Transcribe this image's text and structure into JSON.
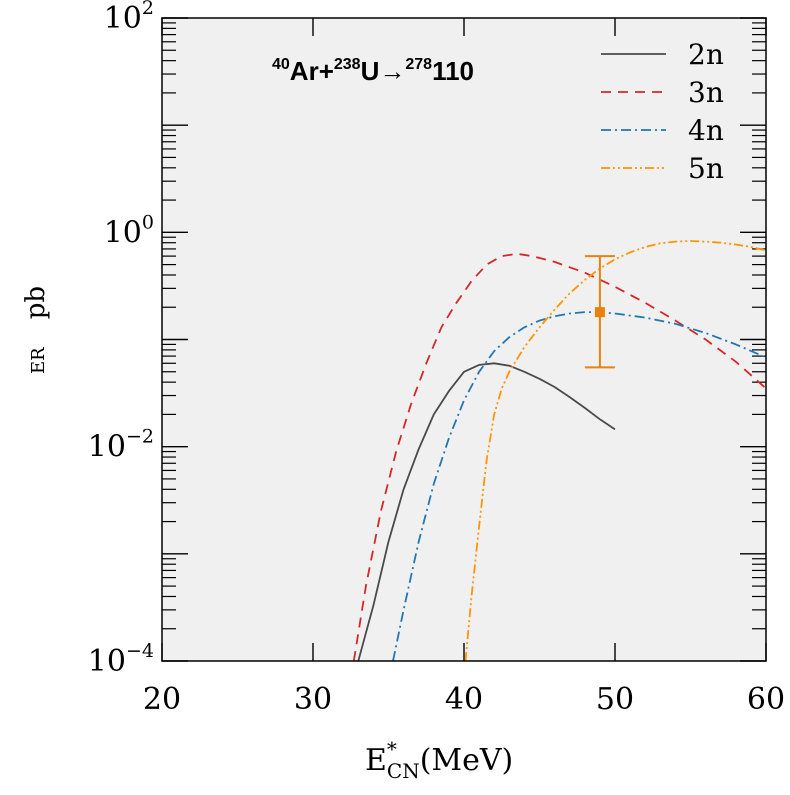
{
  "colors": {
    "background": "#ffffff",
    "plot_area": "#f0f0f0",
    "axis": "#000000",
    "2n": "#4a4a4a",
    "3n": "#d62728",
    "4n": "#1f77b4",
    "5n": "#ff9500",
    "experiment": "#e8820c"
  },
  "chart_data": {
    "type": "line",
    "title": {
      "a1": "40",
      "e1": "Ar+",
      "a2": "238",
      "e2": "U",
      "arrow": "→",
      "a3": "278",
      "e3": "110"
    },
    "xlabel": {
      "main": "E",
      "sup": "*",
      "sub": "CN",
      "unit": "(MeV)"
    },
    "ylabel": {
      "sub": "ER",
      "main": "pb"
    },
    "xlim": [
      20,
      60
    ],
    "ylim": [
      0.0001,
      100
    ],
    "yscale": "log",
    "x_ticks": [
      {
        "value": 20,
        "label": "20"
      },
      {
        "value": 30,
        "label": "30"
      },
      {
        "value": 40,
        "label": "40"
      },
      {
        "value": 50,
        "label": "50"
      },
      {
        "value": 60,
        "label": "60"
      }
    ],
    "y_ticks": [
      {
        "value": 0.0001,
        "base": "10",
        "exp": "−4"
      },
      {
        "value": 0.01,
        "base": "10",
        "exp": "−2"
      },
      {
        "value": 1,
        "base": "10",
        "exp": "0"
      },
      {
        "value": 100,
        "base": "10",
        "exp": "2"
      }
    ],
    "legend_position": "top-right",
    "series": [
      {
        "name": "2n",
        "color_key": "2n",
        "dash": "solid",
        "x": [
          33,
          34,
          35,
          36,
          37,
          38,
          39,
          40,
          41,
          42,
          43,
          44,
          45,
          46,
          47,
          48,
          49,
          50
        ],
        "y": [
          0.0001,
          0.00033,
          0.0013,
          0.004,
          0.0095,
          0.02,
          0.033,
          0.05,
          0.058,
          0.06,
          0.057,
          0.05,
          0.043,
          0.036,
          0.029,
          0.023,
          0.018,
          0.0145
        ]
      },
      {
        "name": "3n",
        "color_key": "3n",
        "dash": "dashed",
        "x": [
          32.7,
          33.5,
          34.5,
          35.5,
          36.5,
          37.5,
          38.5,
          39.5,
          40.5,
          41.5,
          42.5,
          43.5,
          44.5,
          46,
          48,
          50,
          52,
          54,
          56,
          58,
          60
        ],
        "y": [
          0.0001,
          0.0005,
          0.0025,
          0.009,
          0.025,
          0.06,
          0.13,
          0.22,
          0.35,
          0.5,
          0.6,
          0.63,
          0.6,
          0.53,
          0.42,
          0.31,
          0.22,
          0.15,
          0.1,
          0.062,
          0.035
        ]
      },
      {
        "name": "4n",
        "color_key": "4n",
        "dash": "dashdot",
        "x": [
          35.3,
          36,
          37,
          38,
          39,
          40,
          41,
          42,
          43,
          44,
          45,
          46,
          47,
          48,
          49,
          50,
          52,
          54,
          56,
          58,
          60
        ],
        "y": [
          0.0001,
          0.0003,
          0.0013,
          0.0045,
          0.012,
          0.027,
          0.05,
          0.078,
          0.105,
          0.13,
          0.15,
          0.165,
          0.175,
          0.18,
          0.18,
          0.175,
          0.16,
          0.14,
          0.115,
          0.09,
          0.068
        ]
      },
      {
        "name": "5n",
        "color_key": "5n",
        "dash": "dashdotdot",
        "x": [
          40.1,
          40.5,
          41,
          41.5,
          42,
          42.5,
          43,
          44,
          45,
          46,
          47,
          48,
          49,
          50,
          51,
          52,
          53,
          54,
          55,
          56,
          57,
          58,
          59,
          60
        ],
        "y": [
          0.0001,
          0.0004,
          0.0018,
          0.0075,
          0.02,
          0.035,
          0.05,
          0.085,
          0.13,
          0.19,
          0.27,
          0.36,
          0.46,
          0.56,
          0.65,
          0.73,
          0.79,
          0.82,
          0.83,
          0.82,
          0.8,
          0.77,
          0.73,
          0.68
        ]
      }
    ],
    "experimental_point": {
      "x": 49,
      "y": 0.18,
      "y_low": 0.055,
      "y_high": 0.6
    }
  }
}
